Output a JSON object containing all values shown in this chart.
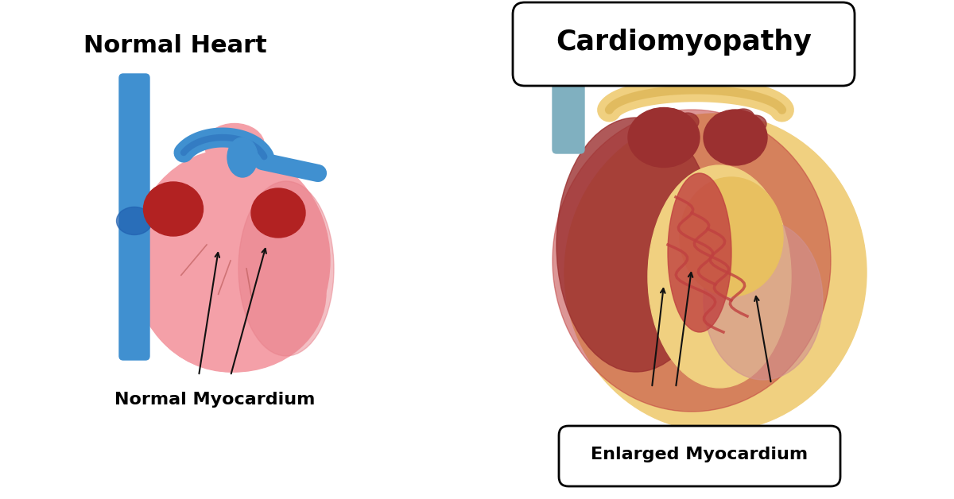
{
  "title_normal": "Normal Heart",
  "title_cardio": "Cardiomyopathy",
  "label_normal": "Normal Myocardium",
  "label_cardio": "Enlarged Myocardium",
  "bg_color": "#ffffff",
  "normal_heart_pink": "#F4A0A8",
  "normal_heart_pink_dark": "#E8808A",
  "normal_heart_red": "#B22222",
  "normal_heart_blue": "#4090D0",
  "normal_heart_blue_dark": "#2060B0",
  "cardio_heart_red": "#C04040",
  "cardio_heart_dark": "#9B3030",
  "cardio_heart_yellow": "#F0D080",
  "cardio_heart_pink": "#D07070",
  "cardio_blue": "#80B0C0",
  "arrow_color": "#111111",
  "title_fontsize": 22,
  "label_fontsize": 16
}
